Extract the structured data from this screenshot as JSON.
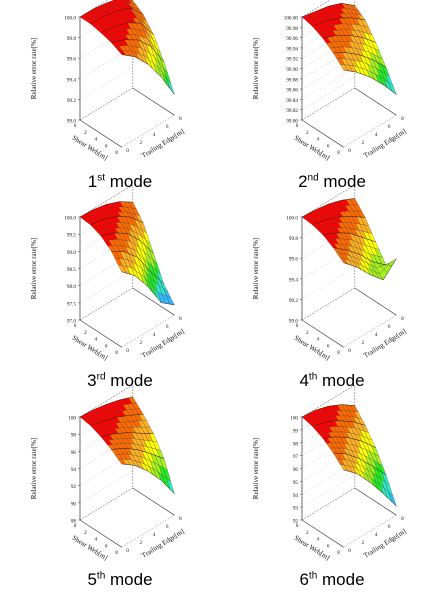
{
  "palette": [
    "#1565ff",
    "#33b8ff",
    "#2ee8c8",
    "#22ee22",
    "#a6f21c",
    "#ffff00",
    "#ffb020",
    "#ff6a00",
    "#ff0000"
  ],
  "chart_data": [
    {
      "type": "surface3d",
      "caption_num": "1",
      "caption_sup": "st",
      "caption_text": "mode",
      "zlabel": "Relative error rate[%]",
      "xlabel": "Shear Web[m]",
      "ylabel": "Trailing Edge[m]",
      "zlim": [
        99.0,
        100.0
      ],
      "zticks": [
        "100.0",
        "99.8",
        "99.6",
        "99.4",
        "99.2",
        "99.0"
      ],
      "xticks": [
        "0",
        "2",
        "4",
        "6",
        "8"
      ],
      "yticks": [
        "0",
        "2",
        "4",
        "6",
        "8"
      ],
      "x": [
        0,
        2,
        4,
        6,
        8
      ],
      "y": [
        0,
        2,
        4,
        6,
        8
      ],
      "z": [
        [
          100.0,
          100.0,
          99.98,
          99.95,
          99.85
        ],
        [
          100.0,
          99.99,
          99.97,
          99.92,
          99.78
        ],
        [
          99.98,
          99.96,
          99.92,
          99.84,
          99.65
        ],
        [
          99.95,
          99.9,
          99.82,
          99.68,
          99.45
        ],
        [
          99.9,
          99.8,
          99.65,
          99.45,
          99.2
        ]
      ]
    },
    {
      "type": "surface3d",
      "caption_num": "2",
      "caption_sup": "nd",
      "caption_text": "mode",
      "zlabel": "Relative error rate[%]",
      "xlabel": "Shear Web[m]",
      "ylabel": "Trailing Edge[m]",
      "zlim": [
        99.8,
        100.0
      ],
      "zticks": [
        "100.00",
        "99.98",
        "99.96",
        "99.94",
        "99.92",
        "99.90",
        "99.88",
        "99.86",
        "99.84",
        "99.82",
        "99.80"
      ],
      "xticks": [
        "0",
        "2",
        "4",
        "6",
        "8"
      ],
      "yticks": [
        "0",
        "2",
        "4",
        "6",
        "8"
      ],
      "x": [
        0,
        2,
        4,
        6,
        8
      ],
      "y": [
        0,
        2,
        4,
        6,
        8
      ],
      "z": [
        [
          100.0,
          99.995,
          99.99,
          99.98,
          99.96
        ],
        [
          99.995,
          99.99,
          99.98,
          99.965,
          99.945
        ],
        [
          99.985,
          99.975,
          99.96,
          99.94,
          99.915
        ],
        [
          99.97,
          99.955,
          99.935,
          99.91,
          99.88
        ],
        [
          99.95,
          99.93,
          99.905,
          99.875,
          99.84
        ]
      ]
    },
    {
      "type": "surface3d",
      "caption_num": "3",
      "caption_sup": "rd",
      "caption_text": "mode",
      "zlabel": "Relative error rate[%]",
      "xlabel": "Shear Web[m]",
      "ylabel": "Trailing Edge[m]",
      "zlim": [
        97.0,
        100.0
      ],
      "zticks": [
        "100.0",
        "99.5",
        "99.0",
        "98.5",
        "98.0",
        "97.5",
        "97.0"
      ],
      "xticks": [
        "0",
        "2",
        "4",
        "6",
        "8"
      ],
      "yticks": [
        "0",
        "2",
        "4",
        "6",
        "8"
      ],
      "x": [
        0,
        2,
        4,
        6,
        8
      ],
      "y": [
        0,
        2,
        4,
        6,
        8
      ],
      "z": [
        [
          100.0,
          99.98,
          99.9,
          99.75,
          99.5
        ],
        [
          99.97,
          99.9,
          99.75,
          99.5,
          99.1
        ],
        [
          99.85,
          99.7,
          99.45,
          99.0,
          98.4
        ],
        [
          99.6,
          99.35,
          98.95,
          98.3,
          97.7
        ],
        [
          99.2,
          98.85,
          98.3,
          97.6,
          97.3
        ]
      ]
    },
    {
      "type": "surface3d",
      "caption_num": "4",
      "caption_sup": "th",
      "caption_text": "mode",
      "zlabel": "Relative error rate[%]",
      "xlabel": "Shear Web[m]",
      "ylabel": "Trailing Edge[m]",
      "zlim": [
        99.0,
        100.0
      ],
      "zticks": [
        "100.0",
        "99.8",
        "99.6",
        "99.4",
        "99.2",
        "99.0"
      ],
      "xticks": [
        "0",
        "2",
        "4",
        "6",
        "8"
      ],
      "yticks": [
        "0",
        "2",
        "4",
        "6",
        "8"
      ],
      "x": [
        0,
        2,
        4,
        6,
        8
      ],
      "y": [
        0,
        2,
        4,
        6,
        8
      ],
      "z": [
        [
          100.0,
          99.99,
          99.97,
          99.93,
          99.87
        ],
        [
          99.99,
          99.96,
          99.91,
          99.84,
          99.75
        ],
        [
          99.96,
          99.9,
          99.82,
          99.7,
          99.58
        ],
        [
          99.9,
          99.8,
          99.68,
          99.53,
          99.42
        ],
        [
          99.82,
          99.7,
          99.55,
          99.42,
          99.55
        ]
      ]
    },
    {
      "type": "surface3d",
      "caption_num": "5",
      "caption_sup": "th",
      "caption_text": "mode",
      "zlabel": "Relative error rate[%]",
      "xlabel": "Shear Web[m]",
      "ylabel": "Trailing Edge[m]",
      "zlim": [
        88,
        100
      ],
      "zticks": [
        "100",
        "98",
        "96",
        "94",
        "92",
        "90",
        "88"
      ],
      "xticks": [
        "0",
        "2",
        "4",
        "6",
        "8"
      ],
      "yticks": [
        "0",
        "2",
        "4",
        "6",
        "8"
      ],
      "x": [
        0,
        2,
        4,
        6,
        8
      ],
      "y": [
        0,
        2,
        4,
        6,
        8
      ],
      "z": [
        [
          100.0,
          99.9,
          99.6,
          99.2,
          98.6
        ],
        [
          99.8,
          99.4,
          98.9,
          98.2,
          97.4
        ],
        [
          99.3,
          98.7,
          97.9,
          96.9,
          95.9
        ],
        [
          98.6,
          97.8,
          96.7,
          95.3,
          93.8
        ],
        [
          97.7,
          96.6,
          95.0,
          93.0,
          90.5
        ]
      ]
    },
    {
      "type": "surface3d",
      "caption_num": "6",
      "caption_sup": "th",
      "caption_text": "mode",
      "zlabel": "Relative error rate[%]",
      "xlabel": "Shear Web[m]",
      "ylabel": "Trailing Edge[m]",
      "zlim": [
        92,
        100
      ],
      "zticks": [
        "100",
        "99",
        "98",
        "97",
        "96",
        "95",
        "94",
        "93",
        "92"
      ],
      "xticks": [
        "0",
        "2",
        "4",
        "6",
        "8"
      ],
      "yticks": [
        "0",
        "2",
        "4",
        "6",
        "8"
      ],
      "x": [
        0,
        2,
        4,
        6,
        8
      ],
      "y": [
        0,
        2,
        4,
        6,
        8
      ],
      "z": [
        [
          100.0,
          99.9,
          99.6,
          99.1,
          98.4
        ],
        [
          99.8,
          99.5,
          99.0,
          98.3,
          97.4
        ],
        [
          99.4,
          98.9,
          98.2,
          97.3,
          96.2
        ],
        [
          98.8,
          98.1,
          97.1,
          95.9,
          94.6
        ],
        [
          98.0,
          97.1,
          95.8,
          94.3,
          92.7
        ]
      ]
    }
  ]
}
